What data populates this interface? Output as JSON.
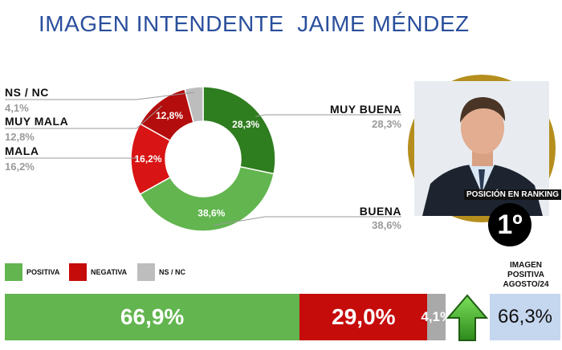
{
  "title": "IMAGEN INTENDENTE  JAIME MÉNDEZ",
  "chart_data": {
    "type": "pie",
    "slices": [
      {
        "name": "MUY BUENA",
        "value": 28.3,
        "label": "28,3%",
        "color": "#2e7d1f"
      },
      {
        "name": "BUENA",
        "value": 38.6,
        "label": "38,6%",
        "color": "#62b54f"
      },
      {
        "name": "MALA",
        "value": 16.2,
        "label": "16,2%",
        "color": "#d81414"
      },
      {
        "name": "MUY MALA",
        "value": 12.8,
        "label": "12,8%",
        "color": "#b30d0d"
      },
      {
        "name": "NS / NC",
        "value": 4.1,
        "label": "4,1%",
        "color": "#bdbdbd"
      }
    ]
  },
  "labels": {
    "muy_buena": {
      "name": "MUY BUENA",
      "value": "28,3%"
    },
    "buena": {
      "name": "BUENA",
      "value": "38,6%"
    },
    "mala": {
      "name": "MALA",
      "value": "16,2%"
    },
    "muy_mala": {
      "name": "MUY MALA",
      "value": "12,8%"
    },
    "nsnc": {
      "name": "NS / NC",
      "value": "4,1%"
    }
  },
  "ranking": {
    "label": "POSICIÓN EN RANKING",
    "value": "1º"
  },
  "legend": [
    {
      "label": "POSITIVA",
      "color": "#62b54f"
    },
    {
      "label": "NEGATIVA",
      "color": "#c60b0b"
    },
    {
      "label": "NS / NC",
      "color": "#bdbdbd"
    }
  ],
  "summary_bar": [
    {
      "name": "POSITIVA",
      "value": 66.9,
      "label": "66,9%",
      "color": "#62b54f"
    },
    {
      "name": "NEGATIVA",
      "value": 29.0,
      "label": "29,0%",
      "color": "#c60b0b"
    },
    {
      "name": "NS / NC",
      "value": 4.1,
      "label": "4,1%",
      "color": "#a9a9a9"
    }
  ],
  "previous": {
    "title_line1": "IMAGEN",
    "title_line2": "POSITIVA",
    "title_line3": "AGOSTO/24",
    "value": "66,3%"
  }
}
